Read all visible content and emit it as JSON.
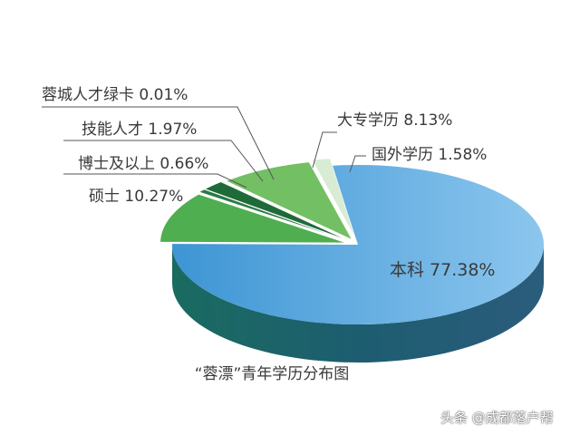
{
  "chart_data": {
    "type": "pie",
    "title": "“蓉漂”青年学历分布图",
    "slices": [
      {
        "name": "本科",
        "value": 77.38,
        "label": "本科 77.38%",
        "color": "#4ea3dc"
      },
      {
        "name": "硕士",
        "value": 10.27,
        "label": "硕士 10.27%",
        "color": "#4fae4f"
      },
      {
        "name": "博士及以上",
        "value": 0.66,
        "label": "博士及以上 0.66%",
        "color": "#2a7a43"
      },
      {
        "name": "技能人才",
        "value": 1.97,
        "label": "技能人才 1.97%",
        "color": "#1e6b39"
      },
      {
        "name": "蓉城人才绿卡",
        "value": 0.01,
        "label": "蓉城人才绿卡 0.01%",
        "color": "#5a8a5a"
      },
      {
        "name": "大专学历",
        "value": 8.13,
        "label": "大专学历 8.13%",
        "color": "#73bf63"
      },
      {
        "name": "国外学历",
        "value": 1.58,
        "label": "国外学历 1.58%",
        "color": "#d7ecd3"
      }
    ]
  },
  "watermark": "头条 @成都落户帮"
}
